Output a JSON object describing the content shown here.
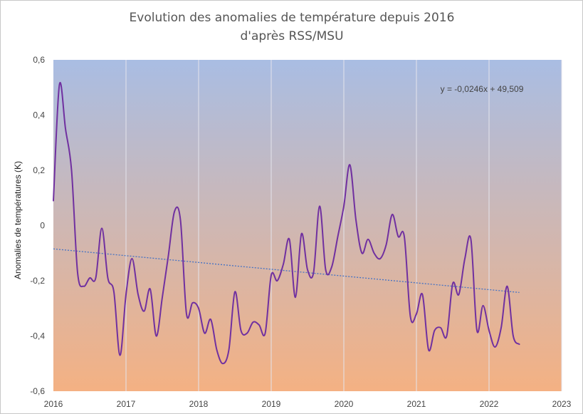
{
  "chart_data": {
    "type": "line",
    "title_line1": "Evolution des anomalies de température depuis 2016",
    "title_line2": "d'après RSS/MSU",
    "xlabel": "",
    "ylabel": "Anomalies de températures (K)",
    "xlim": [
      2016,
      2023
    ],
    "ylim": [
      -0.6,
      0.6
    ],
    "x_ticks": [
      2016,
      2017,
      2018,
      2019,
      2020,
      2021,
      2022,
      2023
    ],
    "x_tick_labels": [
      "2016",
      "2017",
      "2018",
      "2019",
      "2020",
      "2021",
      "2022",
      "2023"
    ],
    "y_ticks": [
      -0.6,
      -0.4,
      -0.2,
      0,
      0.2,
      0.4,
      0.6
    ],
    "y_tick_labels": [
      "-0,6",
      "-0,4",
      "-0,2",
      "0",
      "0,2",
      "0,4",
      "0,6"
    ],
    "grid": "vertical",
    "colors": {
      "line": "#7030a0",
      "trend": "#4472c4",
      "bg_top": "#a9bde3",
      "bg_bottom": "#f4b183"
    },
    "series": [
      {
        "name": "RSS/MSU",
        "x": [
          2016.0,
          2016.083,
          2016.167,
          2016.25,
          2016.333,
          2016.417,
          2016.5,
          2016.583,
          2016.667,
          2016.75,
          2016.833,
          2016.917,
          2017.0,
          2017.083,
          2017.167,
          2017.25,
          2017.333,
          2017.417,
          2017.5,
          2017.583,
          2017.667,
          2017.75,
          2017.833,
          2017.917,
          2018.0,
          2018.083,
          2018.167,
          2018.25,
          2018.333,
          2018.417,
          2018.5,
          2018.583,
          2018.667,
          2018.75,
          2018.833,
          2018.917,
          2019.0,
          2019.083,
          2019.167,
          2019.25,
          2019.333,
          2019.417,
          2019.5,
          2019.583,
          2019.667,
          2019.75,
          2019.833,
          2019.917,
          2020.0,
          2020.083,
          2020.167,
          2020.25,
          2020.333,
          2020.417,
          2020.5,
          2020.583,
          2020.667,
          2020.75,
          2020.833,
          2020.917,
          2021.0,
          2021.083,
          2021.167,
          2021.25,
          2021.333,
          2021.417,
          2021.5,
          2021.583,
          2021.667,
          2021.75,
          2021.833,
          2021.917,
          2022.0,
          2022.083,
          2022.167,
          2022.25,
          2022.333,
          2022.417
        ],
        "values": [
          0.09,
          0.51,
          0.35,
          0.2,
          -0.17,
          -0.22,
          -0.19,
          -0.19,
          -0.01,
          -0.19,
          -0.24,
          -0.47,
          -0.25,
          -0.12,
          -0.25,
          -0.31,
          -0.23,
          -0.4,
          -0.26,
          -0.11,
          0.05,
          0.02,
          -0.32,
          -0.28,
          -0.3,
          -0.39,
          -0.34,
          -0.45,
          -0.5,
          -0.45,
          -0.24,
          -0.38,
          -0.39,
          -0.35,
          -0.36,
          -0.39,
          -0.18,
          -0.2,
          -0.14,
          -0.05,
          -0.26,
          -0.03,
          -0.16,
          -0.17,
          0.07,
          -0.16,
          -0.15,
          -0.04,
          0.07,
          0.22,
          0.02,
          -0.1,
          -0.05,
          -0.1,
          -0.12,
          -0.07,
          0.04,
          -0.04,
          -0.04,
          -0.33,
          -0.32,
          -0.25,
          -0.45,
          -0.38,
          -0.37,
          -0.4,
          -0.21,
          -0.25,
          -0.12,
          -0.05,
          -0.38,
          -0.29,
          -0.38,
          -0.44,
          -0.37,
          -0.22,
          -0.4,
          -0.43
        ]
      }
    ],
    "trendline": {
      "equation": "y = -0,0246x + 49,509",
      "slope": -0.0246,
      "intercept": 49.509,
      "x_range": [
        2016.0,
        2022.417
      ]
    }
  }
}
